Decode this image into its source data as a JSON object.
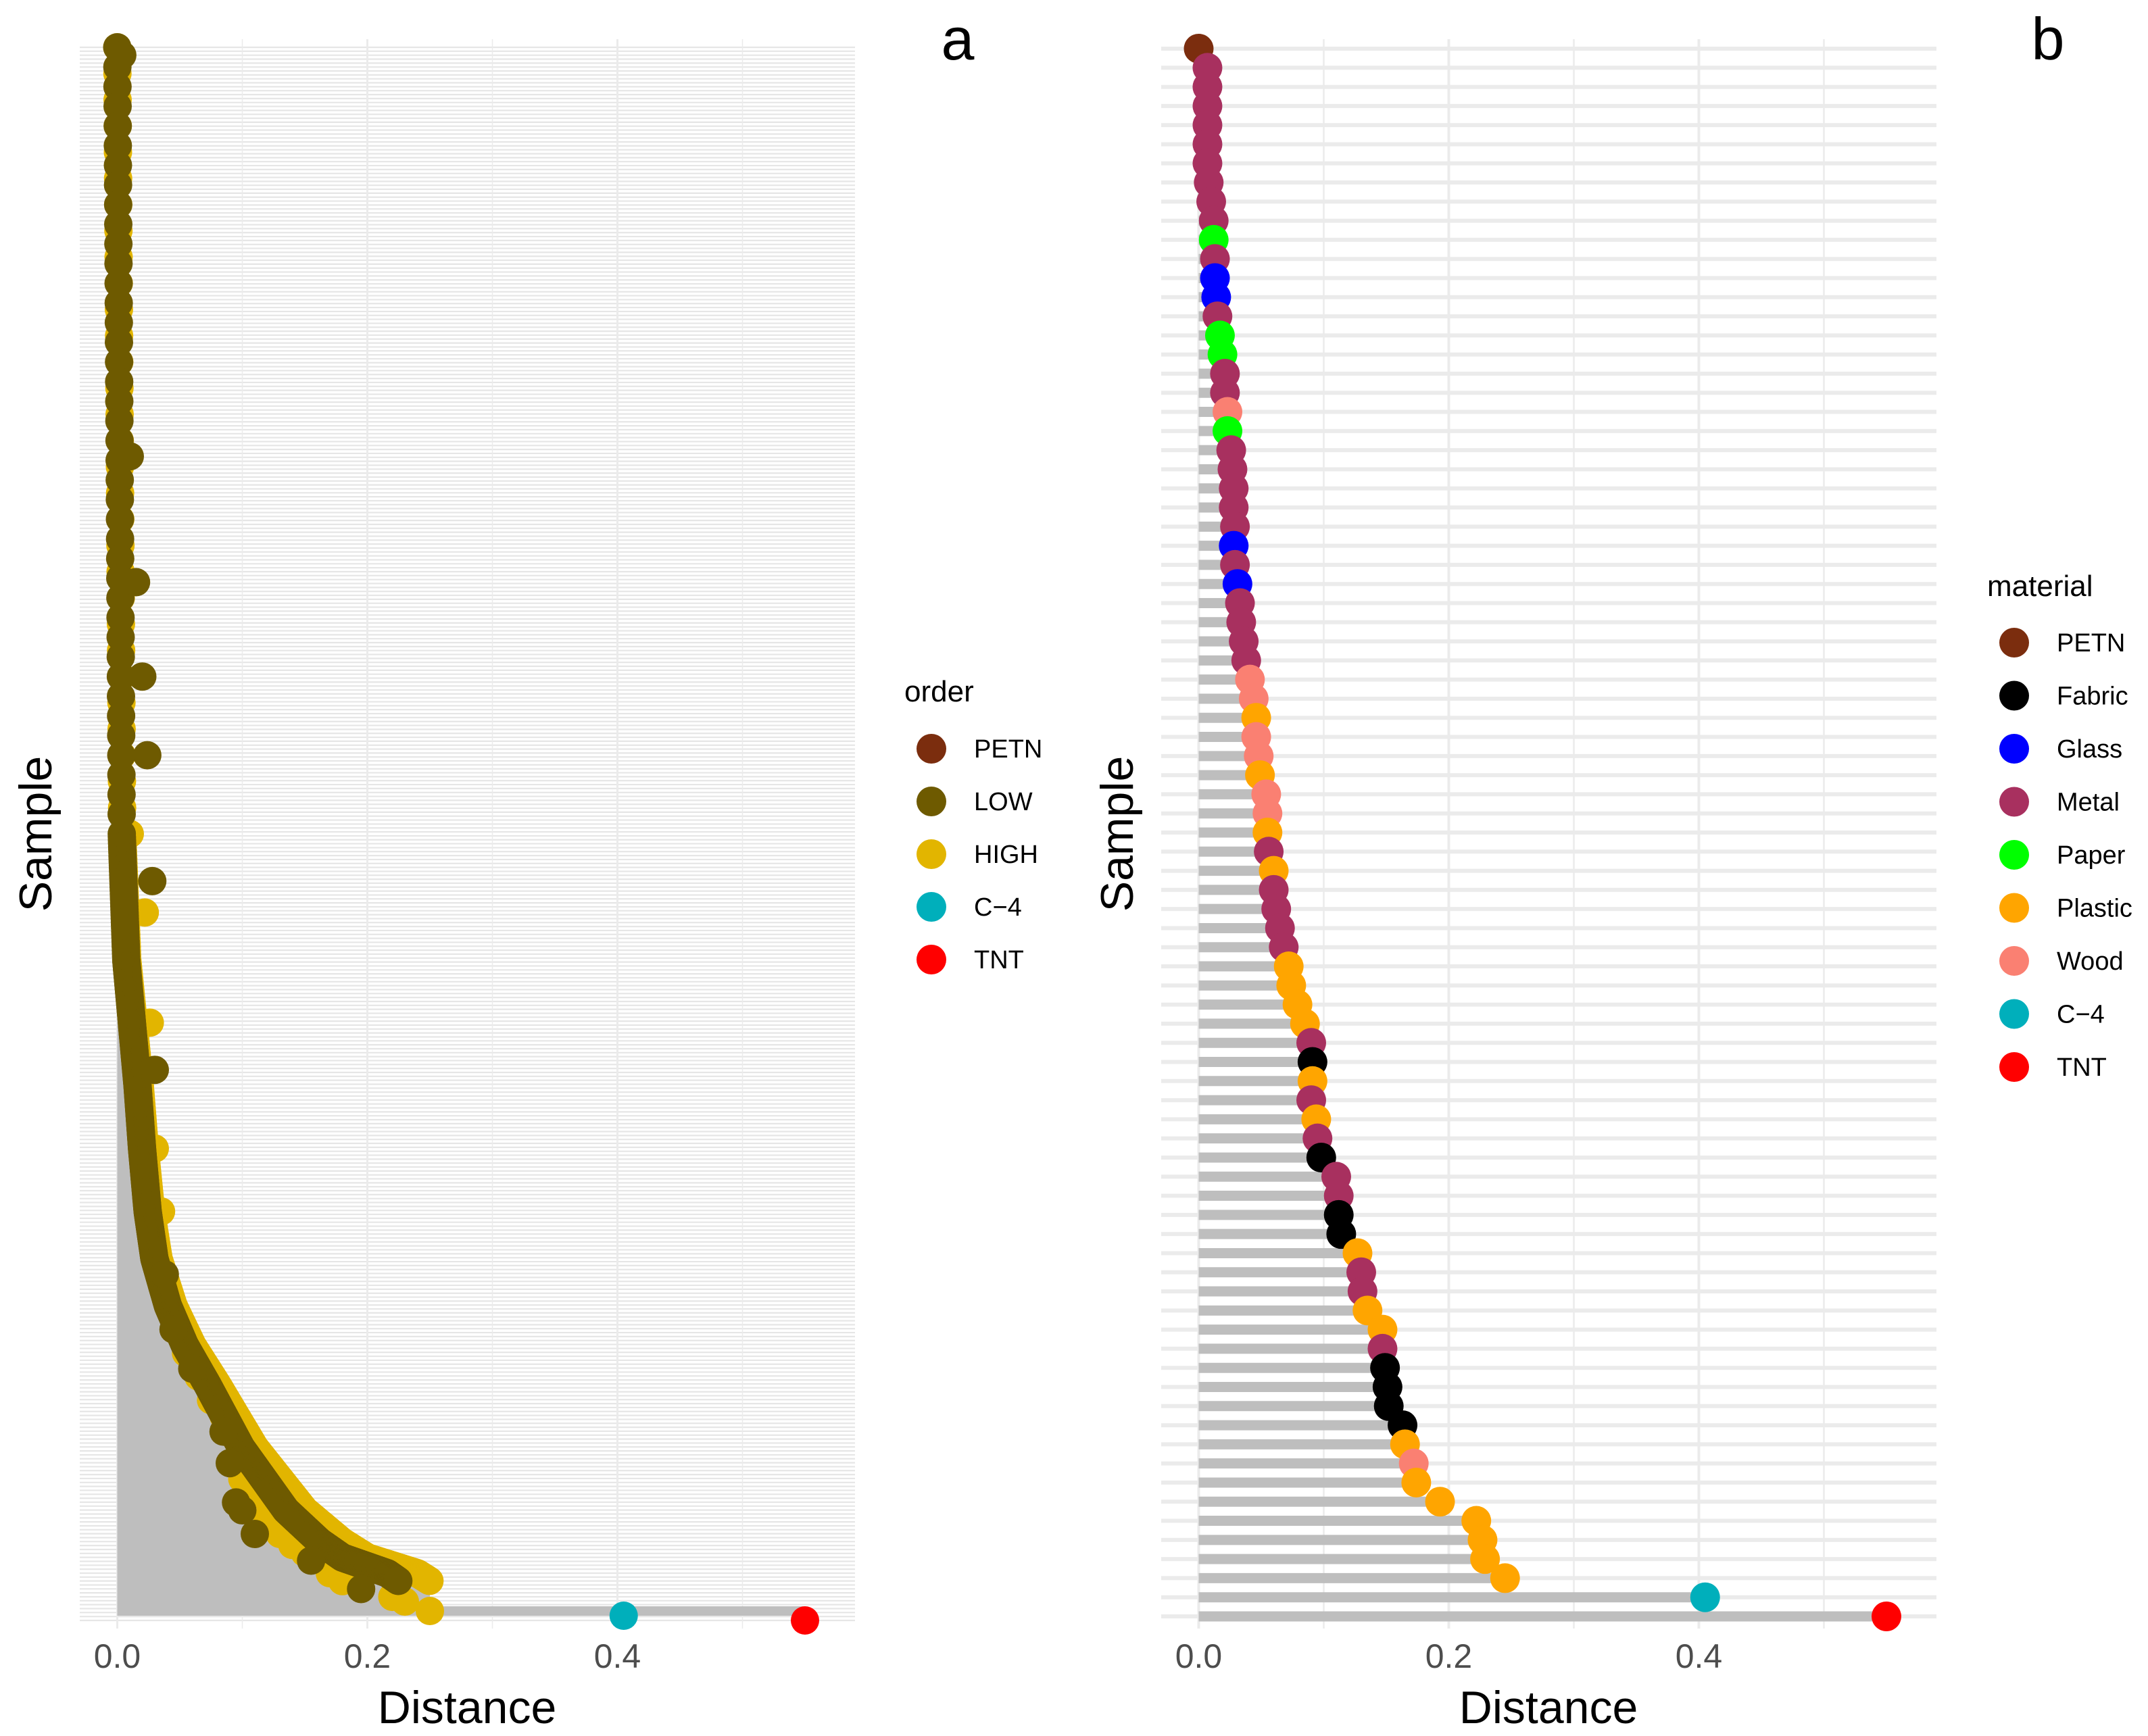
{
  "chart_data": [
    {
      "id": "a",
      "type": "lollipop",
      "panel_label": "a",
      "xlabel": "Distance",
      "ylabel": "Sample",
      "xlim": [
        -0.03,
        0.59
      ],
      "xticks": [
        "0.0",
        "0.2",
        "0.4"
      ],
      "xtick_values": [
        0.0,
        0.2,
        0.4
      ],
      "grid": true,
      "legend": {
        "title": "order",
        "position": "right",
        "entries": [
          {
            "label": "PETN",
            "color": "#7B2D0E"
          },
          {
            "label": "LOW",
            "color": "#6E5A00"
          },
          {
            "label": "HIGH",
            "color": "#E2B500"
          },
          {
            "label": "C−4",
            "color": "#00AFBB"
          },
          {
            "label": "TNT",
            "color": "#FF0000"
          }
        ]
      },
      "n_samples": 400,
      "low_curve": [
        [
          0.0,
          0.0
        ],
        [
          0.5,
          0.004
        ],
        [
          0.58,
          0.008
        ],
        [
          0.62,
          0.013
        ],
        [
          0.66,
          0.018
        ],
        [
          0.7,
          0.022
        ],
        [
          0.74,
          0.027
        ],
        [
          0.77,
          0.033
        ],
        [
          0.8,
          0.045
        ],
        [
          0.825,
          0.06
        ],
        [
          0.85,
          0.08
        ],
        [
          0.87,
          0.095
        ],
        [
          0.89,
          0.11
        ],
        [
          0.91,
          0.13
        ],
        [
          0.93,
          0.15
        ],
        [
          0.95,
          0.18
        ],
        [
          0.96,
          0.2
        ],
        [
          0.965,
          0.22
        ],
        [
          0.97,
          0.24
        ],
        [
          0.975,
          0.25
        ]
      ],
      "low_scatter": [
        [
          0.004,
          0.995
        ],
        [
          0.01,
          0.74
        ],
        [
          0.015,
          0.66
        ],
        [
          0.02,
          0.6
        ],
        [
          0.024,
          0.55
        ],
        [
          0.028,
          0.47
        ],
        [
          0.03,
          0.35
        ],
        [
          0.038,
          0.22
        ],
        [
          0.045,
          0.185
        ],
        [
          0.06,
          0.16
        ],
        [
          0.085,
          0.12
        ],
        [
          0.09,
          0.1
        ],
        [
          0.095,
          0.075
        ],
        [
          0.1,
          0.07
        ],
        [
          0.11,
          0.055
        ],
        [
          0.155,
          0.038
        ],
        [
          0.195,
          0.02
        ]
      ],
      "high_scatter": [
        [
          0.01,
          0.5
        ],
        [
          0.022,
          0.45
        ],
        [
          0.026,
          0.38
        ],
        [
          0.03,
          0.3
        ],
        [
          0.035,
          0.26
        ],
        [
          0.045,
          0.2
        ],
        [
          0.055,
          0.17
        ],
        [
          0.065,
          0.155
        ],
        [
          0.075,
          0.14
        ],
        [
          0.085,
          0.13
        ],
        [
          0.1,
          0.09
        ],
        [
          0.11,
          0.08
        ],
        [
          0.12,
          0.065
        ],
        [
          0.13,
          0.055
        ],
        [
          0.14,
          0.048
        ],
        [
          0.15,
          0.043
        ],
        [
          0.17,
          0.03
        ],
        [
          0.18,
          0.025
        ],
        [
          0.22,
          0.015
        ],
        [
          0.23,
          0.012
        ],
        [
          0.25,
          0.006
        ]
      ],
      "special_points": [
        {
          "group": "C−4",
          "x": 0.405,
          "y": 0.003
        },
        {
          "group": "TNT",
          "x": 0.55,
          "y": 0.0
        }
      ]
    },
    {
      "id": "b",
      "type": "lollipop",
      "panel_label": "b",
      "xlabel": "Distance",
      "ylabel": "Sample",
      "xlim": [
        -0.03,
        0.59
      ],
      "xticks": [
        "0.0",
        "0.2",
        "0.4"
      ],
      "xtick_values": [
        0.0,
        0.2,
        0.4
      ],
      "grid": true,
      "legend": {
        "title": "material",
        "position": "right",
        "entries": [
          {
            "label": "PETN",
            "color": "#7B2D0E"
          },
          {
            "label": "Fabric",
            "color": "#000000"
          },
          {
            "label": "Glass",
            "color": "#0000FF"
          },
          {
            "label": "Metal",
            "color": "#A8305F"
          },
          {
            "label": "Paper",
            "color": "#00FF00"
          },
          {
            "label": "Plastic",
            "color": "#FFA500"
          },
          {
            "label": "Wood",
            "color": "#FA8072"
          },
          {
            "label": "C−4",
            "color": "#00AFBB"
          },
          {
            "label": "TNT",
            "color": "#FF0000"
          }
        ]
      },
      "points": [
        {
          "m": "PETN",
          "x": 0.0
        },
        {
          "m": "Metal",
          "x": 0.007
        },
        {
          "m": "Metal",
          "x": 0.007
        },
        {
          "m": "Metal",
          "x": 0.007
        },
        {
          "m": "Metal",
          "x": 0.007
        },
        {
          "m": "Metal",
          "x": 0.007
        },
        {
          "m": "Metal",
          "x": 0.007
        },
        {
          "m": "Metal",
          "x": 0.008
        },
        {
          "m": "Metal",
          "x": 0.01
        },
        {
          "m": "Metal",
          "x": 0.012
        },
        {
          "m": "Paper",
          "x": 0.012
        },
        {
          "m": "Metal",
          "x": 0.013
        },
        {
          "m": "Glass",
          "x": 0.013
        },
        {
          "m": "Glass",
          "x": 0.014
        },
        {
          "m": "Metal",
          "x": 0.015
        },
        {
          "m": "Paper",
          "x": 0.017
        },
        {
          "m": "Paper",
          "x": 0.019
        },
        {
          "m": "Metal",
          "x": 0.021
        },
        {
          "m": "Metal",
          "x": 0.021
        },
        {
          "m": "Wood",
          "x": 0.023
        },
        {
          "m": "Paper",
          "x": 0.023
        },
        {
          "m": "Metal",
          "x": 0.026
        },
        {
          "m": "Metal",
          "x": 0.027
        },
        {
          "m": "Metal",
          "x": 0.028
        },
        {
          "m": "Metal",
          "x": 0.028
        },
        {
          "m": "Metal",
          "x": 0.029
        },
        {
          "m": "Glass",
          "x": 0.028
        },
        {
          "m": "Metal",
          "x": 0.029
        },
        {
          "m": "Glass",
          "x": 0.031
        },
        {
          "m": "Metal",
          "x": 0.033
        },
        {
          "m": "Metal",
          "x": 0.034
        },
        {
          "m": "Metal",
          "x": 0.036
        },
        {
          "m": "Metal",
          "x": 0.038
        },
        {
          "m": "Wood",
          "x": 0.041
        },
        {
          "m": "Wood",
          "x": 0.044
        },
        {
          "m": "Plastic",
          "x": 0.046
        },
        {
          "m": "Wood",
          "x": 0.046
        },
        {
          "m": "Wood",
          "x": 0.048
        },
        {
          "m": "Plastic",
          "x": 0.049
        },
        {
          "m": "Wood",
          "x": 0.054
        },
        {
          "m": "Wood",
          "x": 0.055
        },
        {
          "m": "Plastic",
          "x": 0.055
        },
        {
          "m": "Metal",
          "x": 0.056
        },
        {
          "m": "Plastic",
          "x": 0.06
        },
        {
          "m": "Metal",
          "x": 0.06
        },
        {
          "m": "Metal",
          "x": 0.062
        },
        {
          "m": "Metal",
          "x": 0.065
        },
        {
          "m": "Metal",
          "x": 0.068
        },
        {
          "m": "Plastic",
          "x": 0.072
        },
        {
          "m": "Plastic",
          "x": 0.074
        },
        {
          "m": "Plastic",
          "x": 0.079
        },
        {
          "m": "Plastic",
          "x": 0.085
        },
        {
          "m": "Metal",
          "x": 0.09
        },
        {
          "m": "Fabric",
          "x": 0.091
        },
        {
          "m": "Plastic",
          "x": 0.091
        },
        {
          "m": "Metal",
          "x": 0.09
        },
        {
          "m": "Plastic",
          "x": 0.094
        },
        {
          "m": "Metal",
          "x": 0.095
        },
        {
          "m": "Fabric",
          "x": 0.098
        },
        {
          "m": "Metal",
          "x": 0.11
        },
        {
          "m": "Metal",
          "x": 0.112
        },
        {
          "m": "Fabric",
          "x": 0.112
        },
        {
          "m": "Fabric",
          "x": 0.114
        },
        {
          "m": "Plastic",
          "x": 0.127
        },
        {
          "m": "Metal",
          "x": 0.13
        },
        {
          "m": "Metal",
          "x": 0.131
        },
        {
          "m": "Plastic",
          "x": 0.135
        },
        {
          "m": "Plastic",
          "x": 0.147
        },
        {
          "m": "Metal",
          "x": 0.147
        },
        {
          "m": "Fabric",
          "x": 0.149
        },
        {
          "m": "Fabric",
          "x": 0.151
        },
        {
          "m": "Fabric",
          "x": 0.152
        },
        {
          "m": "Fabric",
          "x": 0.163
        },
        {
          "m": "Plastic",
          "x": 0.165
        },
        {
          "m": "Wood",
          "x": 0.172
        },
        {
          "m": "Plastic",
          "x": 0.174
        },
        {
          "m": "Plastic",
          "x": 0.193
        },
        {
          "m": "Plastic",
          "x": 0.222
        },
        {
          "m": "Plastic",
          "x": 0.227
        },
        {
          "m": "Plastic",
          "x": 0.229
        },
        {
          "m": "Plastic",
          "x": 0.245
        },
        {
          "m": "C−4",
          "x": 0.405
        },
        {
          "m": "TNT",
          "x": 0.55
        }
      ]
    }
  ]
}
